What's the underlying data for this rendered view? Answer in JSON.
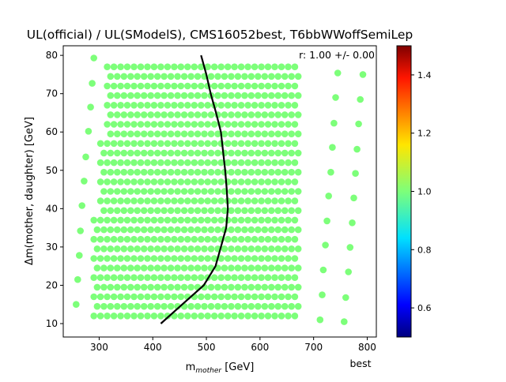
{
  "chart_data": {
    "type": "scatter",
    "title": "UL(official) / UL(SModelS), CMS16052best, T6bbWWoffSemiLep",
    "xlabel": "m_mother [GeV]",
    "ylabel": "Δm(mother, daughter) [GeV]",
    "xlim": [
      233,
      817
    ],
    "ylim": [
      6.5,
      82.5
    ],
    "x_ticks": [
      "300",
      "400",
      "500",
      "600",
      "700",
      "800"
    ],
    "y_ticks": [
      "10",
      "20",
      "30",
      "40",
      "50",
      "60",
      "70",
      "80"
    ],
    "annotation": "r:  1.00 +/- 0.00",
    "corner_label": "best",
    "point_value": 1.0,
    "point_color": "#7dff7a",
    "grid": false,
    "colorbar": {
      "colormap": "jet",
      "range": [
        0.5,
        1.5
      ],
      "ticks": [
        "0.6",
        "0.8",
        "1.0",
        "1.2",
        "1.4"
      ]
    },
    "exclusion_line": {
      "color": "#000000",
      "points": [
        [
          415,
          10
        ],
        [
          455,
          15
        ],
        [
          495,
          20
        ],
        [
          517,
          25
        ],
        [
          527,
          30
        ],
        [
          537,
          35
        ],
        [
          540,
          40
        ],
        [
          538,
          45
        ],
        [
          535,
          50
        ],
        [
          531,
          55
        ],
        [
          527,
          60
        ],
        [
          518,
          65
        ],
        [
          508,
          70
        ],
        [
          500,
          75
        ],
        [
          490,
          80
        ]
      ]
    },
    "grid_points": {
      "x_range": [
        290,
        675
      ],
      "x_step": 12.5,
      "y_range": [
        12,
        79
      ],
      "y_step": 2.5,
      "left_edge": [
        {
          "x_min": 288,
          "y_min": 12,
          "y_max": 37
        },
        {
          "x_min": 302,
          "y_min": 37,
          "y_max": 57
        },
        {
          "x_min": 315,
          "y_min": 57,
          "y_max": 79
        }
      ]
    },
    "outer_points": [
      [
        257,
        15
      ],
      [
        260,
        21.5
      ],
      [
        263,
        27.8
      ],
      [
        265,
        34.2
      ],
      [
        268,
        40.8
      ],
      [
        272,
        47.2
      ],
      [
        275,
        53.5
      ],
      [
        280,
        60.2
      ],
      [
        284,
        66.5
      ],
      [
        287,
        72.7
      ],
      [
        290,
        79.3
      ],
      [
        712,
        11
      ],
      [
        716,
        17.5
      ],
      [
        718,
        24
      ],
      [
        722,
        30.5
      ],
      [
        725,
        36.8
      ],
      [
        728,
        43.3
      ],
      [
        732,
        49.5
      ],
      [
        735,
        56
      ],
      [
        738,
        62.3
      ],
      [
        741,
        69
      ],
      [
        745,
        75.4
      ],
      [
        757,
        10.5
      ],
      [
        760,
        16.8
      ],
      [
        765,
        23.5
      ],
      [
        768,
        29.9
      ],
      [
        772,
        36.3
      ],
      [
        775,
        42.8
      ],
      [
        778,
        49.2
      ],
      [
        781,
        55.5
      ],
      [
        784,
        62.1
      ],
      [
        787,
        68.5
      ],
      [
        792,
        75
      ]
    ]
  }
}
